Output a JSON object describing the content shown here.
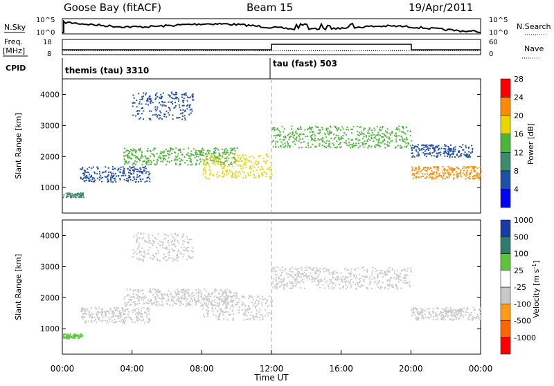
{
  "header": {
    "station": "Goose Bay (fitACF)",
    "beam": "Beam 15",
    "date": "19/Apr/2011"
  },
  "noise_panel": {
    "left_label": "N.Sky",
    "right_label": "N.Search",
    "left_ticks": [
      "10^5",
      "10^0"
    ],
    "right_ticks": [
      "10^5",
      "10^0"
    ]
  },
  "freq_panel": {
    "left_label": "Freq.",
    "left_unit": "[MHz]",
    "right_label": "Nave",
    "left_ticks": [
      "18",
      "8"
    ],
    "right_ticks": [
      "60",
      "0"
    ]
  },
  "cpid": {
    "label": "CPID",
    "mode1": "themis (tau) 3310",
    "mode2": "tau (fast) 503"
  },
  "chart_data": [
    {
      "type": "heatmap",
      "title": "Power",
      "xlabel": "Time UT",
      "ylabel": "Slant Range [km]",
      "x_ticks": [
        "00:00",
        "04:00",
        "08:00",
        "12:00",
        "16:00",
        "20:00",
        "00:00"
      ],
      "xlim_hours": [
        0,
        24
      ],
      "y_ticks": [
        1000,
        2000,
        3000,
        4000
      ],
      "ylim": [
        180,
        4500
      ],
      "colorbar_label": "Power [dB]",
      "colorbar_ticks": [
        4,
        8,
        12,
        16,
        20,
        24,
        28
      ],
      "colorbar_colors": [
        "#0000ff",
        "#1f4fa8",
        "#3d8a6e",
        "#4bb53a",
        "#e8d800",
        "#ff8c00",
        "#ff0000"
      ],
      "scatter_bands": [
        {
          "t_start": 0.0,
          "t_end": 1.2,
          "range_start": 700,
          "range_end": 850,
          "level": 12
        },
        {
          "t_start": 1.0,
          "t_end": 5.0,
          "range_start": 1200,
          "range_end": 1700,
          "level": 8
        },
        {
          "t_start": 3.5,
          "t_end": 10.0,
          "range_start": 1750,
          "range_end": 2300,
          "level": 16
        },
        {
          "t_start": 4.0,
          "t_end": 7.5,
          "range_start": 3200,
          "range_end": 4100,
          "level": 8
        },
        {
          "t_start": 8.0,
          "t_end": 12.0,
          "range_start": 1300,
          "range_end": 2100,
          "level": 20
        },
        {
          "t_start": 12.0,
          "t_end": 20.0,
          "range_start": 2300,
          "range_end": 3000,
          "level": 16
        },
        {
          "t_start": 20.0,
          "t_end": 24.0,
          "range_start": 1300,
          "range_end": 1700,
          "level": 24
        },
        {
          "t_start": 20.0,
          "t_end": 23.5,
          "range_start": 2000,
          "range_end": 2400,
          "level": 8
        }
      ]
    },
    {
      "type": "heatmap",
      "title": "Velocity",
      "xlabel": "Time UT",
      "ylabel": "Slant Range [km]",
      "x_ticks": [
        "00:00",
        "04:00",
        "08:00",
        "12:00",
        "16:00",
        "20:00",
        "00:00"
      ],
      "xlim_hours": [
        0,
        24
      ],
      "y_ticks": [
        1000,
        2000,
        3000,
        4000
      ],
      "ylim": [
        180,
        4500
      ],
      "colorbar_label": "Velocity [m s^-1]",
      "colorbar_ticks": [
        1000,
        500,
        100,
        25,
        -25,
        -100,
        -500,
        -1000
      ],
      "colorbar_colors": [
        "#1a3aa8",
        "#2e7c6e",
        "#5bc43a",
        "#ffffff",
        "#c8c8c8",
        "#ff9a1a",
        "#ff6600",
        "#ff0000"
      ],
      "scatter_bands": [
        {
          "t_start": 0.0,
          "t_end": 1.2,
          "range_start": 700,
          "range_end": 850,
          "velocity": 100
        },
        {
          "t_start": 1.0,
          "t_end": 5.0,
          "range_start": 1200,
          "range_end": 1700,
          "velocity": 0
        },
        {
          "t_start": 3.5,
          "t_end": 10.0,
          "range_start": 1750,
          "range_end": 2300,
          "velocity": 0
        },
        {
          "t_start": 4.0,
          "t_end": 7.5,
          "range_start": 3200,
          "range_end": 4100,
          "velocity": 0
        },
        {
          "t_start": 8.0,
          "t_end": 12.0,
          "range_start": 1300,
          "range_end": 2100,
          "velocity": 0
        },
        {
          "t_start": 12.0,
          "t_end": 20.0,
          "range_start": 2300,
          "range_end": 3000,
          "velocity": 0
        },
        {
          "t_start": 20.0,
          "t_end": 24.0,
          "range_start": 1300,
          "range_end": 1700,
          "velocity": 0
        }
      ]
    }
  ]
}
